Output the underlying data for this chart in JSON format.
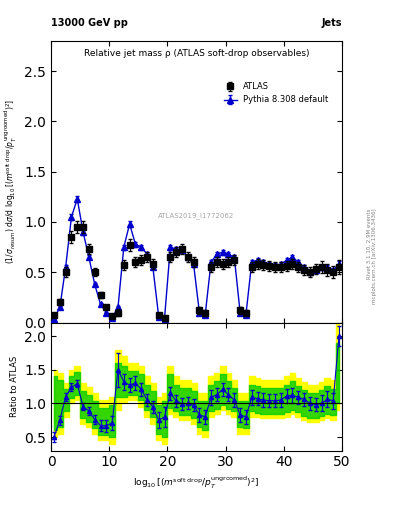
{
  "title_top": "13000 GeV pp",
  "title_right": "Jets",
  "plot_title": "Relative jet mass ρ (ATLAS soft-drop observables)",
  "ylabel_main": "(1/σ_resum) dσ/d log_{10}[(m^{soft drop}/p_T^{ungroomed})^2]",
  "ylabel_ratio": "Ratio to ATLAS",
  "xlabel": "log_{10}[(m^{soft drop}/p_T^{ungroomed})^2]",
  "watermark": "ATLAS2019_I1772062",
  "right_label": "Rivet 3.1.10, 2.9M events\nmcplots.cern.ch [arXiv:1306.3436]",
  "legend_atlas": "ATLAS",
  "legend_pythia": "Pythia 8.308 default",
  "xlim": [
    0,
    50
  ],
  "ylim_main": [
    0,
    2.8
  ],
  "ylim_ratio": [
    0.3,
    2.2
  ],
  "yticks_main": [
    0,
    0.5,
    1.0,
    1.5,
    2.0,
    2.5
  ],
  "yticks_ratio": [
    0.5,
    1.0,
    1.5,
    2.0
  ],
  "atlas_color": "black",
  "pythia_color": "#0000cc",
  "band_yellow": "#ffff00",
  "band_green": "#00cc00",
  "x_data": [
    0.5,
    1.5,
    2.5,
    3.5,
    4.5,
    5.5,
    6.5,
    7.5,
    8.5,
    9.5,
    10.5,
    11.5,
    12.5,
    13.5,
    14.5,
    15.5,
    16.5,
    17.5,
    18.5,
    19.5,
    20.5,
    21.5,
    22.5,
    23.5,
    24.5,
    25.5,
    26.5,
    27.5,
    28.5,
    29.5,
    30.5,
    31.5,
    32.5,
    33.5,
    34.5,
    35.5,
    36.5,
    37.5,
    38.5,
    39.5,
    40.5,
    41.5,
    42.5,
    43.5,
    44.5,
    45.5,
    46.5,
    47.5,
    48.5,
    49.5
  ],
  "atlas_y": [
    0.08,
    0.2,
    0.5,
    0.85,
    0.95,
    0.95,
    0.73,
    0.5,
    0.27,
    0.15,
    0.07,
    0.1,
    0.57,
    0.77,
    0.6,
    0.62,
    0.65,
    0.58,
    0.08,
    0.05,
    0.65,
    0.7,
    0.73,
    0.65,
    0.6,
    0.12,
    0.1,
    0.55,
    0.6,
    0.58,
    0.6,
    0.62,
    0.12,
    0.1,
    0.55,
    0.58,
    0.57,
    0.56,
    0.55,
    0.55,
    0.56,
    0.58,
    0.55,
    0.52,
    0.5,
    0.53,
    0.55,
    0.52,
    0.5,
    0.55
  ],
  "atlas_yerr": [
    0.02,
    0.03,
    0.05,
    0.06,
    0.06,
    0.06,
    0.05,
    0.04,
    0.03,
    0.02,
    0.02,
    0.03,
    0.05,
    0.06,
    0.05,
    0.05,
    0.05,
    0.05,
    0.02,
    0.02,
    0.05,
    0.05,
    0.05,
    0.05,
    0.05,
    0.03,
    0.02,
    0.05,
    0.05,
    0.05,
    0.05,
    0.05,
    0.03,
    0.02,
    0.05,
    0.05,
    0.05,
    0.05,
    0.05,
    0.05,
    0.05,
    0.05,
    0.05,
    0.05,
    0.05,
    0.05,
    0.06,
    0.06,
    0.06,
    0.07
  ],
  "pythia_y": [
    0.04,
    0.15,
    0.55,
    1.05,
    1.23,
    0.9,
    0.65,
    0.38,
    0.18,
    0.1,
    0.05,
    0.15,
    0.75,
    0.98,
    0.78,
    0.75,
    0.68,
    0.55,
    0.06,
    0.04,
    0.75,
    0.73,
    0.72,
    0.65,
    0.58,
    0.1,
    0.08,
    0.6,
    0.68,
    0.7,
    0.68,
    0.65,
    0.1,
    0.08,
    0.6,
    0.62,
    0.6,
    0.58,
    0.57,
    0.58,
    0.62,
    0.65,
    0.6,
    0.55,
    0.5,
    0.52,
    0.55,
    0.55,
    0.52,
    0.58
  ],
  "pythia_yerr": [
    0.005,
    0.01,
    0.02,
    0.03,
    0.03,
    0.025,
    0.02,
    0.015,
    0.01,
    0.008,
    0.005,
    0.01,
    0.025,
    0.03,
    0.025,
    0.025,
    0.02,
    0.02,
    0.005,
    0.003,
    0.025,
    0.025,
    0.025,
    0.02,
    0.02,
    0.008,
    0.005,
    0.02,
    0.025,
    0.025,
    0.025,
    0.025,
    0.007,
    0.005,
    0.02,
    0.02,
    0.02,
    0.02,
    0.02,
    0.02,
    0.02,
    0.025,
    0.02,
    0.02,
    0.02,
    0.02,
    0.025,
    0.025,
    0.025,
    0.03
  ],
  "ratio_y": [
    0.5,
    0.75,
    1.1,
    1.24,
    1.29,
    0.95,
    0.89,
    0.76,
    0.67,
    0.67,
    0.71,
    1.5,
    1.32,
    1.27,
    1.3,
    1.21,
    1.05,
    0.95,
    0.75,
    0.8,
    1.15,
    1.04,
    0.99,
    1.0,
    0.97,
    0.83,
    0.8,
    1.09,
    1.13,
    1.21,
    1.13,
    1.05,
    0.83,
    0.8,
    1.09,
    1.07,
    1.05,
    1.04,
    1.04,
    1.05,
    1.11,
    1.12,
    1.09,
    1.06,
    1.0,
    0.98,
    1.0,
    1.06,
    1.04,
    2.0
  ],
  "ratio_yerr": [
    0.08,
    0.07,
    0.06,
    0.06,
    0.05,
    0.05,
    0.06,
    0.07,
    0.08,
    0.09,
    0.1,
    0.25,
    0.12,
    0.1,
    0.1,
    0.1,
    0.09,
    0.09,
    0.12,
    0.15,
    0.1,
    0.09,
    0.09,
    0.09,
    0.09,
    0.1,
    0.1,
    0.11,
    0.1,
    0.1,
    0.1,
    0.1,
    0.1,
    0.1,
    0.11,
    0.1,
    0.1,
    0.1,
    0.1,
    0.1,
    0.1,
    0.11,
    0.1,
    0.1,
    0.1,
    0.1,
    0.12,
    0.12,
    0.12,
    0.15
  ],
  "band_yellow_lo": [
    0.5,
    0.55,
    0.8,
    1.0,
    1.05,
    0.7,
    0.65,
    0.55,
    0.45,
    0.45,
    0.4,
    0.9,
    1.0,
    1.05,
    1.05,
    0.95,
    0.8,
    0.7,
    0.45,
    0.4,
    0.85,
    0.8,
    0.75,
    0.75,
    0.7,
    0.55,
    0.5,
    0.8,
    0.85,
    0.9,
    0.85,
    0.8,
    0.55,
    0.55,
    0.8,
    0.8,
    0.78,
    0.78,
    0.78,
    0.78,
    0.8,
    0.85,
    0.8,
    0.75,
    0.72,
    0.72,
    0.75,
    0.78,
    0.76,
    0.9
  ],
  "band_yellow_hi": [
    1.5,
    1.45,
    1.3,
    1.5,
    1.55,
    1.3,
    1.25,
    1.15,
    1.05,
    1.05,
    1.1,
    1.8,
    1.7,
    1.6,
    1.6,
    1.55,
    1.4,
    1.3,
    1.1,
    1.15,
    1.55,
    1.4,
    1.35,
    1.35,
    1.3,
    1.15,
    1.15,
    1.4,
    1.45,
    1.55,
    1.45,
    1.35,
    1.15,
    1.15,
    1.4,
    1.38,
    1.35,
    1.35,
    1.35,
    1.35,
    1.4,
    1.45,
    1.38,
    1.32,
    1.28,
    1.28,
    1.32,
    1.38,
    1.34,
    2.2
  ],
  "band_green_lo": [
    0.6,
    0.65,
    0.88,
    1.08,
    1.12,
    0.78,
    0.73,
    0.63,
    0.53,
    0.53,
    0.5,
    1.1,
    1.1,
    1.13,
    1.13,
    1.05,
    0.9,
    0.8,
    0.55,
    0.5,
    0.93,
    0.88,
    0.83,
    0.83,
    0.78,
    0.65,
    0.6,
    0.88,
    0.92,
    0.98,
    0.92,
    0.88,
    0.65,
    0.63,
    0.88,
    0.86,
    0.84,
    0.84,
    0.84,
    0.84,
    0.87,
    0.9,
    0.87,
    0.82,
    0.79,
    0.79,
    0.82,
    0.85,
    0.83,
    1.0
  ],
  "band_green_hi": [
    1.4,
    1.35,
    1.22,
    1.4,
    1.46,
    1.18,
    1.13,
    1.03,
    0.93,
    0.93,
    0.98,
    1.6,
    1.55,
    1.48,
    1.48,
    1.43,
    1.28,
    1.18,
    0.98,
    1.03,
    1.43,
    1.28,
    1.23,
    1.23,
    1.18,
    1.03,
    1.03,
    1.28,
    1.33,
    1.43,
    1.33,
    1.23,
    1.03,
    1.03,
    1.28,
    1.26,
    1.23,
    1.23,
    1.23,
    1.23,
    1.28,
    1.33,
    1.26,
    1.2,
    1.16,
    1.16,
    1.2,
    1.26,
    1.22,
    1.9
  ]
}
